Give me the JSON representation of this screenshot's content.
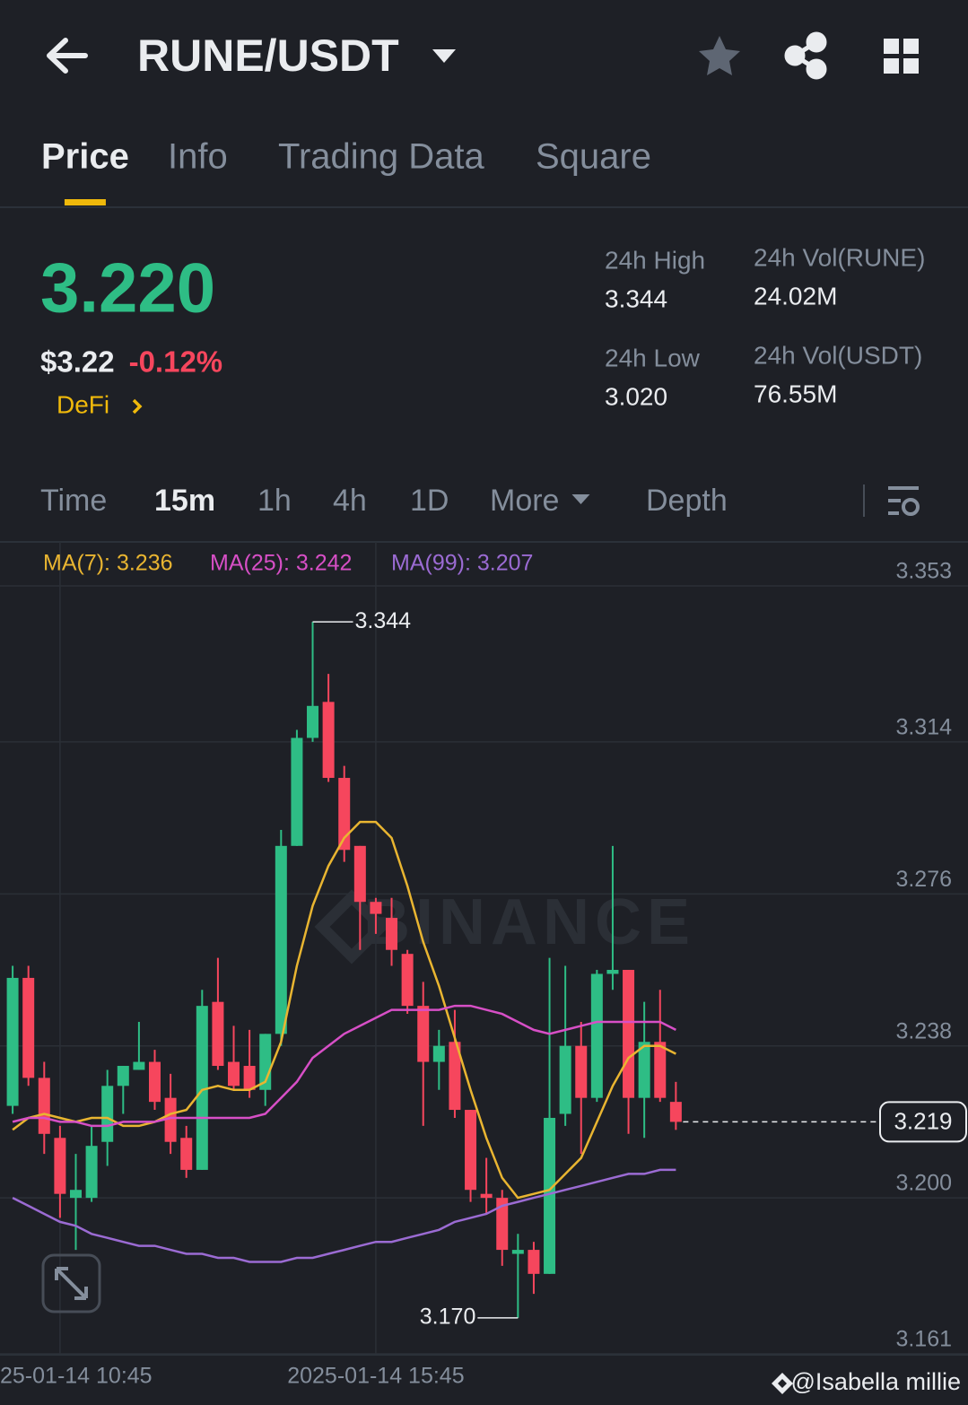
{
  "header": {
    "pair": "RUNE/USDT"
  },
  "tabs": {
    "items": [
      "Price",
      "Info",
      "Trading Data",
      "Square"
    ],
    "active": 0
  },
  "price": {
    "last": "3.220",
    "usd": "$3.22",
    "change": "-0.12%",
    "tag": "DeFi"
  },
  "stats": [
    {
      "label": "24h High",
      "value": "3.344"
    },
    {
      "label": "24h Vol(RUNE)",
      "value": "24.02M"
    },
    {
      "label": "24h Low",
      "value": "3.020"
    },
    {
      "label": "24h Vol(USDT)",
      "value": "76.55M"
    }
  ],
  "intervals": {
    "items": [
      "Time",
      "15m",
      "1h",
      "4h",
      "1D",
      "More",
      "Depth"
    ],
    "active": 1
  },
  "chart_data": {
    "type": "candlestick",
    "up_color": "#2ebd85",
    "down_color": "#f6465d",
    "open": [
      3.223,
      3.255,
      3.23,
      3.215,
      3.2,
      3.2,
      3.214,
      3.228,
      3.232,
      3.234,
      3.225,
      3.215,
      3.207,
      3.249,
      3.234,
      3.233,
      3.227,
      3.241,
      3.288,
      3.315,
      3.324,
      3.305,
      3.288,
      3.274,
      3.27,
      3.261,
      3.248,
      3.234,
      3.239,
      3.222,
      3.201,
      3.2,
      3.186,
      3.187,
      3.181,
      3.221,
      3.238,
      3.225,
      3.256,
      3.257,
      3.225,
      3.239,
      3.224
    ],
    "high": [
      3.258,
      3.258,
      3.234,
      3.218,
      3.211,
      3.218,
      3.232,
      3.233,
      3.244,
      3.237,
      3.231,
      3.218,
      3.252,
      3.26,
      3.243,
      3.242,
      3.241,
      3.292,
      3.317,
      3.344,
      3.331,
      3.308,
      3.288,
      3.275,
      3.275,
      3.262,
      3.254,
      3.242,
      3.247,
      3.222,
      3.21,
      3.202,
      3.191,
      3.189,
      3.26,
      3.258,
      3.244,
      3.257,
      3.288,
      3.257,
      3.249,
      3.252,
      3.229
    ],
    "low": [
      3.221,
      3.228,
      3.211,
      3.195,
      3.187,
      3.199,
      3.208,
      3.221,
      3.232,
      3.222,
      3.211,
      3.205,
      3.207,
      3.232,
      3.227,
      3.225,
      3.223,
      3.238,
      3.288,
      3.314,
      3.304,
      3.284,
      3.262,
      3.266,
      3.258,
      3.246,
      3.218,
      3.227,
      3.22,
      3.199,
      3.196,
      3.183,
      3.17,
      3.176,
      3.181,
      3.218,
      3.211,
      3.224,
      3.252,
      3.216,
      3.215,
      3.224,
      3.217
    ],
    "close": [
      3.255,
      3.23,
      3.216,
      3.201,
      3.202,
      3.213,
      3.228,
      3.233,
      3.234,
      3.224,
      3.214,
      3.207,
      3.248,
      3.233,
      3.228,
      3.227,
      3.241,
      3.288,
      3.315,
      3.323,
      3.305,
      3.287,
      3.274,
      3.271,
      3.262,
      3.248,
      3.234,
      3.238,
      3.222,
      3.202,
      3.2,
      3.187,
      3.187,
      3.181,
      3.22,
      3.238,
      3.225,
      3.256,
      3.257,
      3.225,
      3.239,
      3.225,
      3.219
    ],
    "series": [
      {
        "label": "MA(7): 3.236",
        "color": "#e9b531",
        "values": [
          3.217,
          3.22,
          3.221,
          3.22,
          3.219,
          3.22,
          3.22,
          3.218,
          3.218,
          3.219,
          3.221,
          3.222,
          3.227,
          3.228,
          3.227,
          3.227,
          3.229,
          3.239,
          3.258,
          3.273,
          3.283,
          3.29,
          3.294,
          3.294,
          3.29,
          3.278,
          3.264,
          3.253,
          3.24,
          3.227,
          3.215,
          3.205,
          3.2,
          3.201,
          3.202,
          3.206,
          3.21,
          3.219,
          3.228,
          3.235,
          3.238,
          3.238,
          3.236
        ]
      },
      {
        "label": "MA(25): 3.242",
        "color": "#d74fc6",
        "values": [
          3.219,
          3.22,
          3.22,
          3.219,
          3.219,
          3.218,
          3.218,
          3.219,
          3.219,
          3.219,
          3.22,
          3.22,
          3.22,
          3.22,
          3.22,
          3.22,
          3.221,
          3.225,
          3.229,
          3.235,
          3.238,
          3.241,
          3.243,
          3.245,
          3.247,
          3.247,
          3.247,
          3.247,
          3.248,
          3.248,
          3.247,
          3.246,
          3.244,
          3.242,
          3.241,
          3.242,
          3.243,
          3.244,
          3.244,
          3.244,
          3.244,
          3.244,
          3.242
        ]
      },
      {
        "label": "MA(99): 3.207",
        "color": "#9b6bd3",
        "values": [
          3.2,
          3.198,
          3.196,
          3.194,
          3.193,
          3.191,
          3.19,
          3.189,
          3.188,
          3.188,
          3.187,
          3.186,
          3.186,
          3.185,
          3.185,
          3.184,
          3.184,
          3.184,
          3.185,
          3.185,
          3.186,
          3.187,
          3.188,
          3.189,
          3.189,
          3.19,
          3.191,
          3.192,
          3.194,
          3.195,
          3.196,
          3.198,
          3.199,
          3.2,
          3.201,
          3.202,
          3.203,
          3.204,
          3.205,
          3.206,
          3.206,
          3.207,
          3.207
        ]
      }
    ],
    "xlim": [
      -0.8,
      60.5
    ],
    "xticks": [
      {
        "value": 3,
        "label": "25-01-14 10:45"
      },
      {
        "value": 23,
        "label": "2025-01-14 15:45"
      }
    ],
    "ylim": [
      3.161,
      3.364
    ],
    "yticks": [
      3.353,
      3.314,
      3.276,
      3.238,
      {
        "value": 3.2,
        "label": "3.200"
      },
      3.161
    ],
    "grid": true,
    "last_price": 3.219,
    "annotations": [
      {
        "value": 3.344,
        "label": "3.344"
      },
      {
        "value": 3.17,
        "label": "3.170"
      }
    ]
  },
  "watermark": "BINANCE",
  "credit": "@Isabella millie"
}
